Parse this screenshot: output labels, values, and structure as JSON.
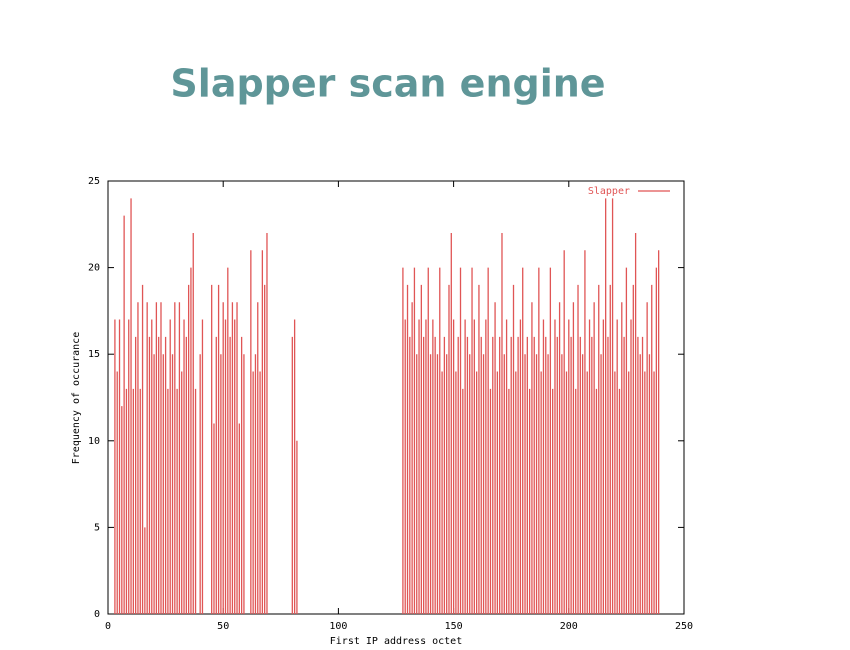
{
  "chart_data": {
    "type": "impulse",
    "title": "Slapper scan engine",
    "xlabel": "First IP address octet",
    "ylabel": "Frequency of occurance",
    "xlim": [
      0,
      250
    ],
    "xticks": [
      0,
      50,
      100,
      150,
      200,
      250
    ],
    "ylim": [
      0,
      25
    ],
    "yticks": [
      0,
      5,
      10,
      15,
      20,
      25
    ],
    "legend": "top-right",
    "x": [
      3,
      4,
      5,
      6,
      7,
      8,
      9,
      10,
      11,
      12,
      13,
      14,
      15,
      16,
      17,
      18,
      19,
      20,
      21,
      22,
      23,
      24,
      25,
      26,
      27,
      28,
      29,
      30,
      31,
      32,
      33,
      34,
      35,
      36,
      37,
      38,
      40,
      41,
      45,
      46,
      47,
      48,
      49,
      50,
      51,
      52,
      53,
      54,
      55,
      56,
      57,
      58,
      59,
      62,
      63,
      64,
      65,
      66,
      67,
      68,
      69,
      80,
      81,
      82,
      128,
      129,
      130,
      131,
      132,
      133,
      134,
      135,
      136,
      137,
      138,
      139,
      140,
      141,
      142,
      143,
      144,
      145,
      146,
      147,
      148,
      149,
      150,
      151,
      152,
      153,
      154,
      155,
      156,
      157,
      158,
      159,
      160,
      161,
      162,
      163,
      164,
      165,
      166,
      167,
      168,
      169,
      170,
      171,
      172,
      173,
      174,
      175,
      176,
      177,
      178,
      179,
      180,
      181,
      182,
      183,
      184,
      185,
      186,
      187,
      188,
      189,
      190,
      191,
      192,
      193,
      194,
      195,
      196,
      197,
      198,
      199,
      200,
      201,
      202,
      203,
      204,
      205,
      206,
      207,
      208,
      209,
      210,
      211,
      212,
      213,
      214,
      215,
      216,
      217,
      218,
      219,
      220,
      221,
      222,
      223,
      224,
      225,
      226,
      227,
      228,
      229,
      230,
      231,
      232,
      233,
      234,
      235,
      236,
      237,
      238,
      239
    ],
    "series": [
      {
        "name": "Slapper",
        "color": "#e05555",
        "values": [
          17,
          14,
          17,
          12,
          23,
          13,
          17,
          24,
          13,
          16,
          18,
          13,
          19,
          5,
          18,
          16,
          17,
          15,
          18,
          16,
          18,
          15,
          16,
          13,
          17,
          15,
          18,
          13,
          18,
          14,
          17,
          16,
          19,
          20,
          22,
          13,
          15,
          17,
          19,
          11,
          16,
          19,
          15,
          18,
          17,
          20,
          16,
          18,
          17,
          18,
          11,
          16,
          15,
          21,
          14,
          15,
          18,
          14,
          21,
          19,
          22,
          16,
          17,
          10,
          20,
          17,
          19,
          16,
          18,
          20,
          15,
          17,
          19,
          16,
          17,
          20,
          15,
          17,
          16,
          15,
          20,
          14,
          16,
          15,
          19,
          22,
          17,
          14,
          16,
          20,
          13,
          17,
          16,
          15,
          20,
          17,
          14,
          19,
          16,
          15,
          17,
          20,
          13,
          16,
          18,
          14,
          16,
          22,
          15,
          17,
          13,
          16,
          19,
          14,
          16,
          17,
          20,
          15,
          16,
          13,
          18,
          16,
          15,
          20,
          14,
          17,
          16,
          15,
          20,
          13,
          17,
          16,
          18,
          15,
          21,
          14,
          17,
          16,
          18,
          13,
          19,
          16,
          15,
          21,
          14,
          17,
          16,
          18,
          13,
          19,
          15,
          17,
          24,
          16,
          19,
          24,
          14,
          17,
          13,
          18,
          16,
          20,
          14,
          17,
          19,
          22,
          16,
          15,
          16,
          14,
          18,
          15,
          19,
          14,
          20,
          21
        ]
      }
    ]
  }
}
